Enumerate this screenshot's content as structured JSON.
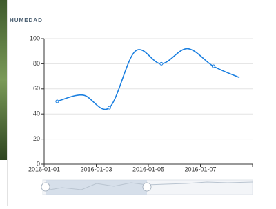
{
  "chart_data": {
    "type": "line",
    "title": "HUMEDAD",
    "categories": [
      "2016-01-01",
      null,
      "2016-01-03",
      null,
      "2016-01-05",
      null,
      "2016-01-07",
      null
    ],
    "values": [
      50,
      55,
      45,
      90,
      80,
      92,
      78,
      69
    ],
    "color": "#1a7fe0",
    "smooth": true,
    "ylim": [
      0,
      100
    ],
    "yticks": [
      0,
      20,
      40,
      60,
      80,
      100
    ],
    "grid": true
  }
}
